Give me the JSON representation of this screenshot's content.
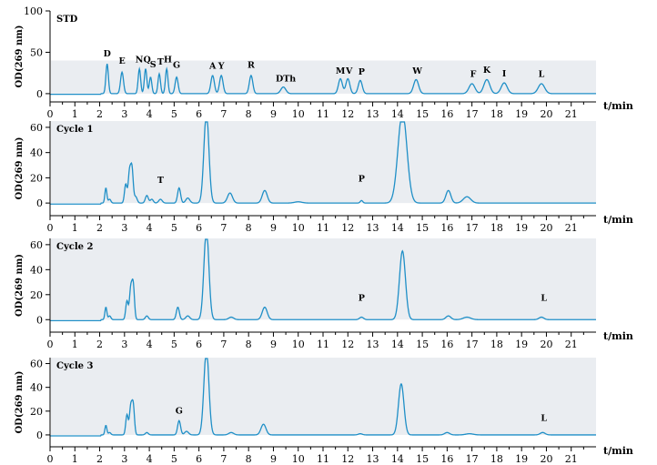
{
  "chart_data": [
    {
      "type": "line",
      "title": "STD",
      "xlabel": "t/min",
      "ylabel": "OD(269 nm)",
      "xlim": [
        0,
        22
      ],
      "ylim": [
        -10,
        100
      ],
      "y_ticks": [
        0,
        50,
        100
      ],
      "x_ticks": [
        0,
        1,
        2,
        3,
        4,
        5,
        6,
        7,
        8,
        9,
        10,
        11,
        12,
        13,
        14,
        15,
        16,
        17,
        18,
        19,
        20,
        21
      ],
      "shaded_band": [
        0,
        40
      ],
      "baseline": 0,
      "color": "#1f8fc7",
      "peaks": [
        {
          "t": 2.3,
          "h": 36,
          "w": 0.05
        },
        {
          "t": 2.9,
          "h": 26,
          "w": 0.06
        },
        {
          "t": 3.6,
          "h": 30,
          "w": 0.05
        },
        {
          "t": 3.85,
          "h": 30,
          "w": 0.05
        },
        {
          "t": 4.05,
          "h": 20,
          "w": 0.05
        },
        {
          "t": 4.4,
          "h": 24,
          "w": 0.05
        },
        {
          "t": 4.7,
          "h": 30,
          "w": 0.05
        },
        {
          "t": 5.1,
          "h": 20,
          "w": 0.06
        },
        {
          "t": 6.55,
          "h": 22,
          "w": 0.07
        },
        {
          "t": 6.9,
          "h": 22,
          "w": 0.07
        },
        {
          "t": 8.1,
          "h": 22,
          "w": 0.07
        },
        {
          "t": 9.4,
          "h": 8,
          "w": 0.1
        },
        {
          "t": 11.7,
          "h": 18,
          "w": 0.08
        },
        {
          "t": 12.0,
          "h": 18,
          "w": 0.08
        },
        {
          "t": 12.5,
          "h": 16,
          "w": 0.08
        },
        {
          "t": 14.75,
          "h": 17,
          "w": 0.1
        },
        {
          "t": 17.0,
          "h": 12,
          "w": 0.12
        },
        {
          "t": 17.6,
          "h": 17,
          "w": 0.12
        },
        {
          "t": 18.3,
          "h": 13,
          "w": 0.12
        },
        {
          "t": 19.8,
          "h": 12,
          "w": 0.13
        }
      ],
      "peak_labels": [
        {
          "text": "D",
          "t": 2.3,
          "y": 45
        },
        {
          "text": "E",
          "t": 2.9,
          "y": 36
        },
        {
          "text": "NQ",
          "t": 3.75,
          "y": 38
        },
        {
          "text": "S",
          "t": 4.15,
          "y": 32
        },
        {
          "text": "T",
          "t": 4.45,
          "y": 35
        },
        {
          "text": "H",
          "t": 4.75,
          "y": 38
        },
        {
          "text": "G",
          "t": 5.1,
          "y": 31
        },
        {
          "text": "A",
          "t": 6.55,
          "y": 30
        },
        {
          "text": "Y",
          "t": 6.9,
          "y": 30
        },
        {
          "text": "R",
          "t": 8.1,
          "y": 31
        },
        {
          "text": "DTh",
          "t": 9.5,
          "y": 15
        },
        {
          "text": "M",
          "t": 11.7,
          "y": 24
        },
        {
          "text": "V",
          "t": 12.05,
          "y": 24
        },
        {
          "text": "P",
          "t": 12.55,
          "y": 23
        },
        {
          "text": "W",
          "t": 14.8,
          "y": 24
        },
        {
          "text": "F",
          "t": 17.05,
          "y": 20
        },
        {
          "text": "K",
          "t": 17.6,
          "y": 25
        },
        {
          "text": "I",
          "t": 18.3,
          "y": 21
        },
        {
          "text": "L",
          "t": 19.8,
          "y": 20
        }
      ]
    },
    {
      "type": "line",
      "title": "Cycle 1",
      "xlabel": "t/min",
      "ylabel": "OD(269 nm)",
      "xlim": [
        0,
        22
      ],
      "ylim": [
        -10,
        65
      ],
      "y_ticks": [
        0,
        20,
        40,
        60
      ],
      "x_ticks": [
        0,
        1,
        2,
        3,
        4,
        5,
        6,
        7,
        8,
        9,
        10,
        11,
        12,
        13,
        14,
        15,
        16,
        17,
        18,
        19,
        20,
        21
      ],
      "shaded_band": [
        0,
        65
      ],
      "baseline": 0,
      "color": "#1f8fc7",
      "peaks": [
        {
          "t": 2.25,
          "h": 12,
          "w": 0.04
        },
        {
          "t": 2.4,
          "h": 3,
          "w": 0.05
        },
        {
          "t": 3.05,
          "h": 15,
          "w": 0.05
        },
        {
          "t": 3.2,
          "h": 24,
          "w": 0.05
        },
        {
          "t": 3.3,
          "h": 27,
          "w": 0.05
        },
        {
          "t": 3.45,
          "h": 5,
          "w": 0.06
        },
        {
          "t": 3.9,
          "h": 6,
          "w": 0.06
        },
        {
          "t": 4.1,
          "h": 3,
          "w": 0.06
        },
        {
          "t": 4.45,
          "h": 3,
          "w": 0.07
        },
        {
          "t": 5.2,
          "h": 12,
          "w": 0.06
        },
        {
          "t": 5.55,
          "h": 4,
          "w": 0.08
        },
        {
          "t": 6.3,
          "h": 72,
          "w": 0.1
        },
        {
          "t": 7.25,
          "h": 8,
          "w": 0.1
        },
        {
          "t": 8.65,
          "h": 10,
          "w": 0.1
        },
        {
          "t": 10.0,
          "h": 1,
          "w": 0.15
        },
        {
          "t": 12.55,
          "h": 2,
          "w": 0.05
        },
        {
          "t": 14.2,
          "h": 72,
          "w": 0.18
        },
        {
          "t": 16.05,
          "h": 10,
          "w": 0.1
        },
        {
          "t": 16.8,
          "h": 5,
          "w": 0.15
        }
      ],
      "peak_labels": [
        {
          "text": "T",
          "t": 4.45,
          "y": 16
        },
        {
          "text": "P",
          "t": 12.55,
          "y": 17
        }
      ]
    },
    {
      "type": "line",
      "title": "Cycle 2",
      "xlabel": "t/min",
      "ylabel": "OD(269 nm)",
      "xlim": [
        0,
        22
      ],
      "ylim": [
        -10,
        65
      ],
      "y_ticks": [
        0,
        20,
        40,
        60
      ],
      "x_ticks": [
        0,
        1,
        2,
        3,
        4,
        5,
        6,
        7,
        8,
        9,
        10,
        11,
        12,
        13,
        14,
        15,
        16,
        17,
        18,
        19,
        20,
        21
      ],
      "shaded_band": [
        0,
        65
      ],
      "baseline": 0,
      "color": "#1f8fc7",
      "peaks": [
        {
          "t": 2.25,
          "h": 10,
          "w": 0.04
        },
        {
          "t": 2.4,
          "h": 3,
          "w": 0.05
        },
        {
          "t": 3.1,
          "h": 15,
          "w": 0.05
        },
        {
          "t": 3.25,
          "h": 24,
          "w": 0.05
        },
        {
          "t": 3.35,
          "h": 28,
          "w": 0.05
        },
        {
          "t": 3.9,
          "h": 3,
          "w": 0.06
        },
        {
          "t": 5.15,
          "h": 10,
          "w": 0.06
        },
        {
          "t": 5.55,
          "h": 3,
          "w": 0.08
        },
        {
          "t": 6.3,
          "h": 72,
          "w": 0.1
        },
        {
          "t": 7.3,
          "h": 2,
          "w": 0.1
        },
        {
          "t": 8.65,
          "h": 10,
          "w": 0.1
        },
        {
          "t": 12.55,
          "h": 2,
          "w": 0.08
        },
        {
          "t": 14.2,
          "h": 55,
          "w": 0.12
        },
        {
          "t": 16.05,
          "h": 3,
          "w": 0.1
        },
        {
          "t": 16.8,
          "h": 2,
          "w": 0.15
        },
        {
          "t": 19.8,
          "h": 2,
          "w": 0.1
        }
      ],
      "peak_labels": [
        {
          "text": "P",
          "t": 12.55,
          "y": 15
        },
        {
          "text": "L",
          "t": 19.9,
          "y": 15
        }
      ]
    },
    {
      "type": "line",
      "title": "Cycle 3",
      "xlabel": "t/min",
      "ylabel": "OD(269 nm)",
      "xlim": [
        0,
        22
      ],
      "ylim": [
        -10,
        65
      ],
      "y_ticks": [
        0,
        20,
        40,
        60
      ],
      "x_ticks": [
        0,
        1,
        2,
        3,
        4,
        5,
        6,
        7,
        8,
        9,
        10,
        11,
        12,
        13,
        14,
        15,
        16,
        17,
        18,
        19,
        20,
        21
      ],
      "shaded_band": [
        0,
        65
      ],
      "baseline": 0,
      "color": "#1f8fc7",
      "peaks": [
        {
          "t": 2.25,
          "h": 8,
          "w": 0.04
        },
        {
          "t": 2.4,
          "h": 2,
          "w": 0.05
        },
        {
          "t": 3.1,
          "h": 17,
          "w": 0.05
        },
        {
          "t": 3.25,
          "h": 23,
          "w": 0.05
        },
        {
          "t": 3.35,
          "h": 25,
          "w": 0.05
        },
        {
          "t": 3.9,
          "h": 2,
          "w": 0.06
        },
        {
          "t": 5.2,
          "h": 12,
          "w": 0.06
        },
        {
          "t": 5.5,
          "h": 3,
          "w": 0.08
        },
        {
          "t": 6.3,
          "h": 72,
          "w": 0.1
        },
        {
          "t": 7.3,
          "h": 2,
          "w": 0.1
        },
        {
          "t": 8.6,
          "h": 9,
          "w": 0.1
        },
        {
          "t": 12.5,
          "h": 1,
          "w": 0.08
        },
        {
          "t": 14.15,
          "h": 43,
          "w": 0.11
        },
        {
          "t": 16.0,
          "h": 2,
          "w": 0.1
        },
        {
          "t": 16.9,
          "h": 1,
          "w": 0.15
        },
        {
          "t": 19.85,
          "h": 2,
          "w": 0.1
        }
      ],
      "peak_labels": [
        {
          "text": "G",
          "t": 5.2,
          "y": 18
        },
        {
          "text": "L",
          "t": 19.9,
          "y": 12
        }
      ]
    }
  ]
}
